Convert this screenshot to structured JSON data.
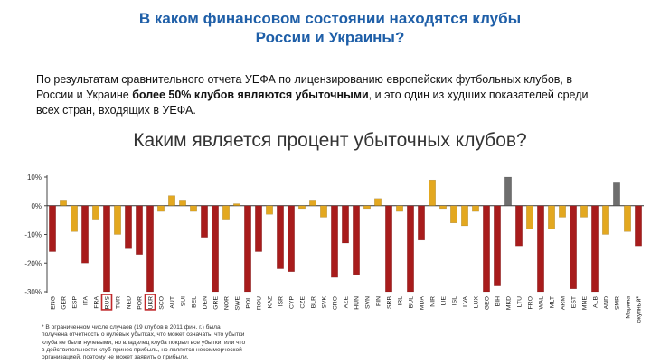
{
  "header": {
    "title_line1": "В каком финансовом состоянии находятся клубы",
    "title_line2": "России и Украины?"
  },
  "intro": {
    "line1": "По результатам сравнительного отчета УЕФА по лицензированию европейских футбольных клубов, в",
    "line2_before": "России и Украине ",
    "line2_bold": "более 50% клубов являются убыточными",
    "line2_after": ", и это один из худших показателей среди",
    "line3": "всех стран, входящих в УЕФА."
  },
  "footnote": {
    "line1": "* В ограниченном числе случаев (19 клубов в 2011 фин. г.) была",
    "line2": "получена отчетность о нулевых убытках, что может означать, что убытки",
    "line3": "клуба не были нулевыми, но владелец клуба покрыл все убытки, или что",
    "line4": "в действительности клуб принес прибыль, но является некоммерческой",
    "line5": "организацией, поэтому не может заявить о прибыли."
  },
  "colors": {
    "red": "#a81c1c",
    "gold": "#e3a820",
    "gray": "#6e6e6e",
    "highlight_box": "#c0282a"
  },
  "chart_data": {
    "type": "bar",
    "title": "Каким является процент убыточных клубов?",
    "ylim": [
      -30,
      10
    ],
    "y_ticks": [
      10,
      0,
      -10,
      -20,
      -30
    ],
    "y_tick_labels": [
      "10%",
      "0%",
      "-10%",
      "-20%",
      "-30%"
    ],
    "grid": false,
    "highlighted": [
      "RUS",
      "UKR"
    ],
    "categories": [
      "ENG",
      "GER",
      "ESP",
      "ITA",
      "FRA",
      "RUS",
      "TUR",
      "NED",
      "POR",
      "UKR",
      "SCO",
      "AUT",
      "SUI",
      "BEL",
      "DEN",
      "GRE",
      "NOR",
      "SWE",
      "POL",
      "ROU",
      "KAZ",
      "ISR",
      "CYP",
      "CZE",
      "BLR",
      "SVK",
      "CRO",
      "AZE",
      "HUN",
      "SVN",
      "FIN",
      "SRB",
      "IRL",
      "BUL",
      "MDA",
      "NIR",
      "LIE",
      "ISL",
      "LVA",
      "LUX",
      "GEO",
      "BIH",
      "MKD",
      "LTU",
      "FRO",
      "WAL",
      "MLT",
      "ARM",
      "EST",
      "MNE",
      "ALB",
      "AND",
      "SMR",
      "Марина",
      "Совокупный*"
    ],
    "category_labels_extra": {
      "Марина": "Марина",
      "Совокупный*": "Совокупный*"
    },
    "bars": [
      [
        {
          "v": -16,
          "c": "red"
        },
        {
          "v": 2,
          "c": "gold"
        },
        {
          "v": -9,
          "c": "gold"
        },
        {
          "v": -20,
          "c": "red"
        },
        {
          "v": -5,
          "c": "gold"
        }
      ],
      [
        {
          "v": -30,
          "c": "red"
        },
        {
          "v": -10,
          "c": "gold"
        },
        {
          "v": -15,
          "c": "red"
        },
        {
          "v": -17,
          "c": "red"
        },
        {
          "v": -30,
          "c": "red"
        }
      ],
      [
        {
          "v": -2,
          "c": "gold"
        },
        {
          "v": 3.5,
          "c": "gold"
        },
        {
          "v": 2,
          "c": "gold"
        },
        {
          "v": -2,
          "c": "gold"
        },
        {
          "v": -11,
          "c": "red"
        }
      ],
      [
        {
          "v": -30,
          "c": "red"
        },
        {
          "v": -5,
          "c": "gold"
        },
        {
          "v": 0.7,
          "c": "gold"
        },
        {
          "v": -30,
          "c": "red"
        },
        {
          "v": -16,
          "c": "red"
        }
      ],
      [
        {
          "v": -3,
          "c": "gold"
        },
        {
          "v": -22,
          "c": "red"
        },
        {
          "v": -23,
          "c": "red"
        },
        {
          "v": -1,
          "c": "gold"
        },
        {
          "v": 2,
          "c": "gold"
        }
      ],
      [
        {
          "v": -4,
          "c": "gold"
        },
        {
          "v": -25,
          "c": "red"
        },
        {
          "v": -13,
          "c": "red"
        },
        {
          "v": -24,
          "c": "red"
        },
        {
          "v": -1,
          "c": "gold"
        }
      ],
      [
        {
          "v": 2.5,
          "c": "gold"
        },
        {
          "v": -30,
          "c": "red"
        },
        {
          "v": -2,
          "c": "gold"
        },
        {
          "v": -30,
          "c": "red"
        },
        {
          "v": -12,
          "c": "red"
        }
      ],
      [
        {
          "v": 9,
          "c": "gold"
        },
        {
          "v": -1,
          "c": "gold"
        },
        {
          "v": -6,
          "c": "gold"
        },
        {
          "v": -7,
          "c": "gold"
        },
        {
          "v": -2,
          "c": "gold"
        }
      ],
      [
        {
          "v": -30,
          "c": "red"
        },
        {
          "v": -28,
          "c": "red"
        },
        {
          "v": 10,
          "c": "gray"
        },
        {
          "v": -14,
          "c": "red"
        },
        {
          "v": -8,
          "c": "gold"
        }
      ],
      [
        {
          "v": -30,
          "c": "red"
        },
        {
          "v": -8,
          "c": "gold"
        },
        {
          "v": -4,
          "c": "gold"
        },
        {
          "v": -29,
          "c": "red"
        },
        {
          "v": -4,
          "c": "gold"
        }
      ],
      [
        {
          "v": -30,
          "c": "red"
        },
        {
          "v": -10,
          "c": "gold"
        },
        {
          "v": 8,
          "c": "gray"
        },
        {
          "v": -9,
          "c": "gold"
        },
        {
          "v": -14,
          "c": "red"
        }
      ]
    ]
  }
}
